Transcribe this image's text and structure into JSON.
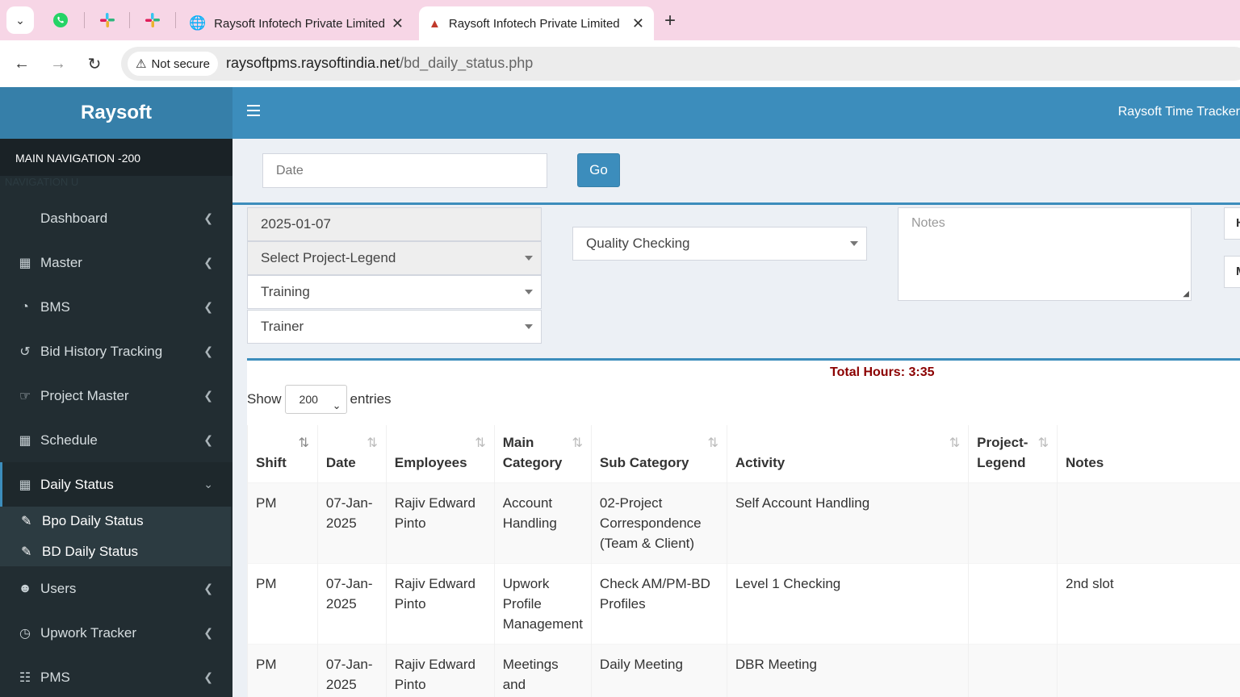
{
  "browser": {
    "tabs": [
      {
        "title": "Raysoft Infotech Private Limited",
        "active": false
      },
      {
        "title": "Raysoft Infotech Private Limited",
        "active": true
      }
    ],
    "security_label": "Not secure",
    "url_host": "raysoftpms.raysoftindia.net",
    "url_path": "/bd_daily_status.php"
  },
  "app": {
    "logo": "Raysoft",
    "header_title": "Raysoft Time Tracker"
  },
  "sidebar": {
    "header": "MAIN NAVIGATION -200",
    "sub_header": "NAVIGATION U",
    "items": [
      {
        "label": "Dashboard",
        "icon": "none"
      },
      {
        "label": "Master",
        "icon": "grid-icon"
      },
      {
        "label": "BMS",
        "icon": "pie-chart-icon"
      },
      {
        "label": "Bid History Tracking",
        "icon": "history-icon"
      },
      {
        "label": "Project Master",
        "icon": "hand-pointer-icon"
      },
      {
        "label": "Schedule",
        "icon": "table-icon"
      },
      {
        "label": "Daily Status",
        "icon": "table-icon"
      },
      {
        "label": "Users",
        "icon": "users-icon"
      },
      {
        "label": "Upwork Tracker",
        "icon": "clock-icon"
      },
      {
        "label": "PMS",
        "icon": "calendar-icon"
      }
    ],
    "submenu": [
      {
        "label": "Bpo Daily Status",
        "icon": "edit-icon"
      },
      {
        "label": "BD Daily Status",
        "icon": "edit-icon"
      }
    ]
  },
  "filter": {
    "date_placeholder": "Date",
    "go_label": "Go"
  },
  "form": {
    "date_value": "2025-01-07",
    "project_legend": "Select Project-Legend",
    "main_category": "Training",
    "sub_category": "Trainer",
    "activity": "Quality Checking",
    "notes_placeholder": "Notes",
    "stub1": "H",
    "stub2": "M"
  },
  "table": {
    "total_hours": "Total Hours: 3:35",
    "show_label": "Show",
    "entries_value": "200",
    "entries_label": "entries",
    "columns": [
      "Shift",
      "Date",
      "Employees",
      "Main Category",
      "Sub Category",
      "Activity",
      "Project-Legend",
      "Notes"
    ],
    "rows": [
      {
        "shift": "PM",
        "date": "07-Jan-2025",
        "employee": "Rajiv Edward Pinto",
        "main_category": "Account Handling",
        "sub_category": "02-Project Correspondence (Team & Client)",
        "activity": "Self Account Handling",
        "project_legend": "",
        "notes": ""
      },
      {
        "shift": "PM",
        "date": "07-Jan-2025",
        "employee": "Rajiv Edward Pinto",
        "main_category": "Upwork Profile Management",
        "sub_category": "Check AM/PM-BD Profiles",
        "activity": "Level 1 Checking",
        "project_legend": "",
        "notes": "2nd slot"
      },
      {
        "shift": "PM",
        "date": "07-Jan-2025",
        "employee": "Rajiv Edward Pinto",
        "main_category": "Meetings and Discussions",
        "sub_category": "Daily Meeting",
        "activity": "DBR Meeting",
        "project_legend": "",
        "notes": ""
      }
    ]
  },
  "colors": {
    "primary": "#3c8dbc",
    "primary_dark": "#367fa9",
    "sidebar_bg": "#222d32",
    "total_hours": "#8b0000"
  }
}
